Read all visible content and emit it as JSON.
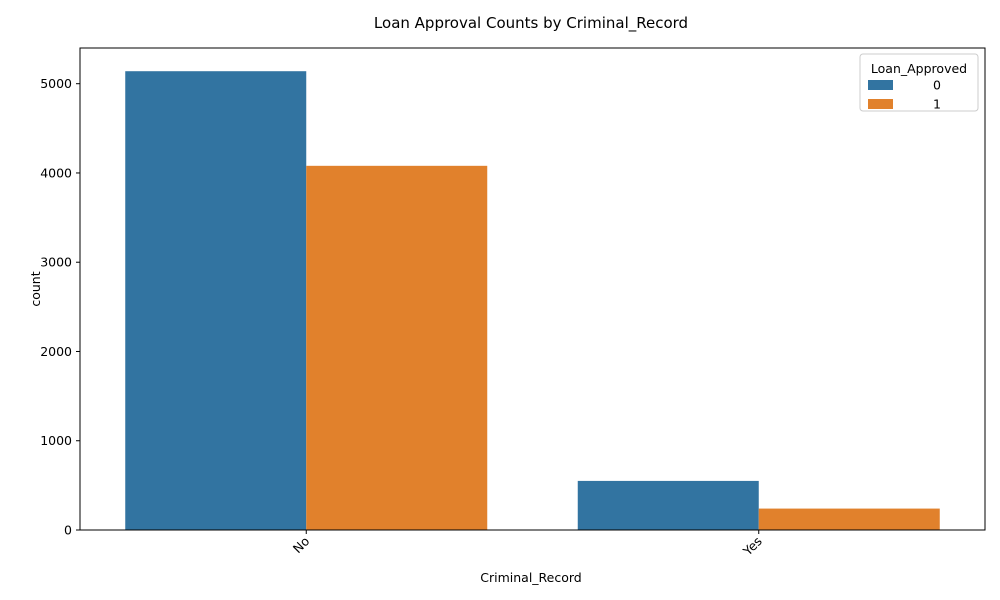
{
  "chart_data": {
    "type": "bar",
    "title": "Loan Approval Counts by Criminal_Record",
    "xlabel": "Criminal_Record",
    "ylabel": "count",
    "categories": [
      "No",
      "Yes"
    ],
    "series": [
      {
        "name": "0",
        "values": [
          5140,
          550
        ],
        "color": "#3274a1"
      },
      {
        "name": "1",
        "values": [
          4080,
          240
        ],
        "color": "#e1812c"
      }
    ],
    "ylim": [
      0,
      5400
    ],
    "yticks": [
      0,
      1000,
      2000,
      3000,
      4000,
      5000
    ],
    "legend": {
      "title": "Loan_Approved",
      "placement": "top-right"
    },
    "grid": false,
    "xtick_rotation": 45
  }
}
